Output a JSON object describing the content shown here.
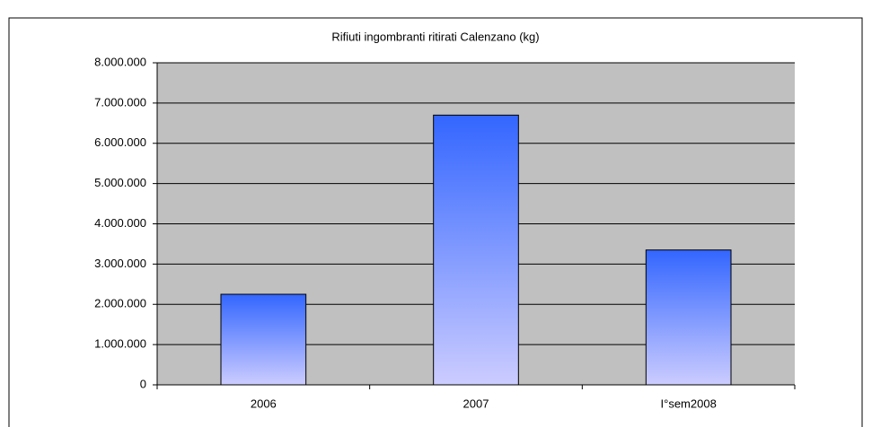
{
  "chart_data": {
    "type": "bar",
    "title": "Rifiuti ingombranti ritirati Calenzano (kg)",
    "categories": [
      "2006",
      "2007",
      "I°sem2008"
    ],
    "values": [
      2250000,
      6700000,
      3350000
    ],
    "color": "#3366ff",
    "ylim": [
      0,
      8000000
    ],
    "yticks": [
      0,
      {
        "value": 1000000,
        "label": "1.000.000"
      },
      {
        "value": 2000000,
        "label": "2.000.000"
      },
      {
        "value": 3000000,
        "label": "3.000.000"
      },
      {
        "value": 4000000,
        "label": "4.000.000"
      },
      {
        "value": 5000000,
        "label": "5.000.000"
      },
      {
        "value": 6000000,
        "label": "6.000.000"
      },
      {
        "value": 7000000,
        "label": "7.000.000"
      },
      {
        "value": 8000000,
        "label": "8.000.000"
      }
    ],
    "grid": true
  }
}
